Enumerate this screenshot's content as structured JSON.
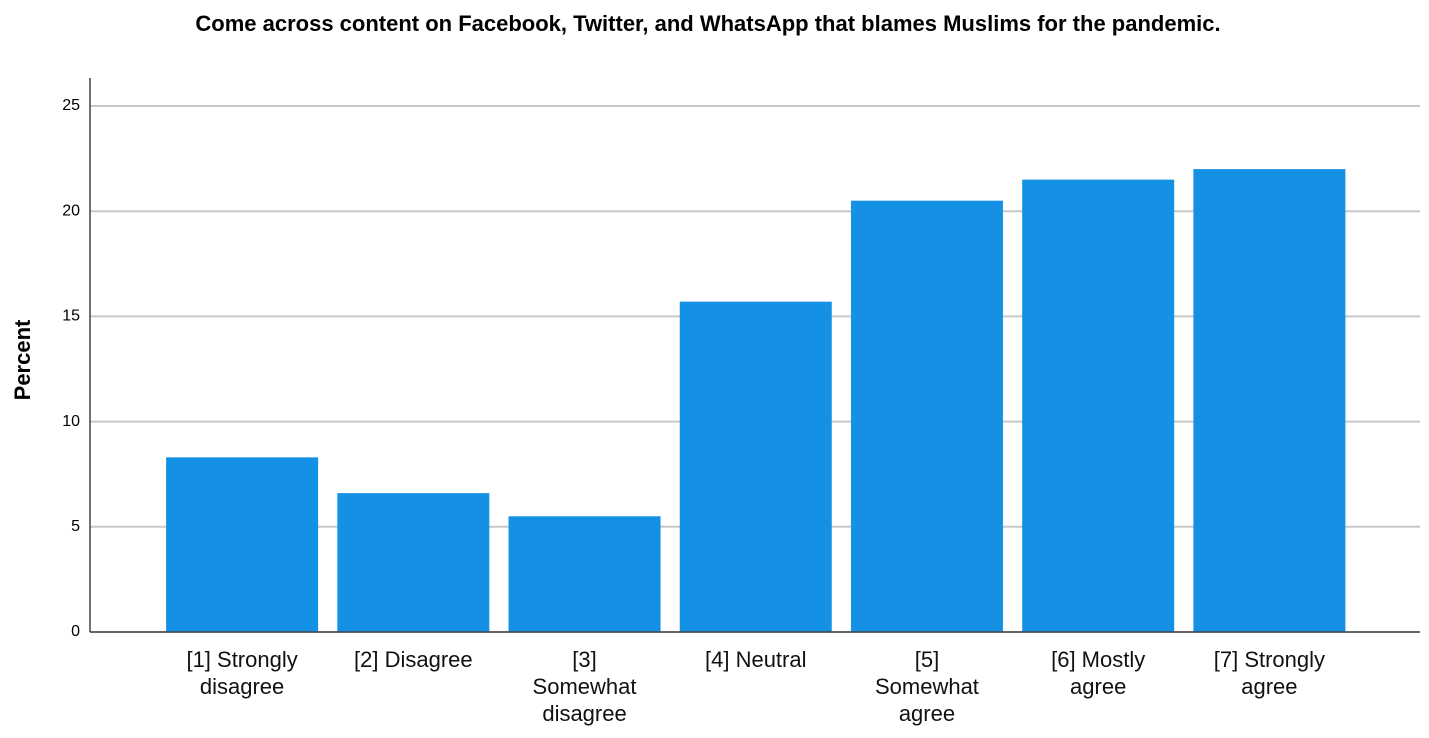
{
  "chart_data": {
    "type": "bar",
    "title": "Come across content on Facebook, Twitter, and WhatsApp that blames Muslims for the pandemic.",
    "y_label": "Percent",
    "categories": [
      "[1] Strongly\ndisagree",
      "[2] Disagree",
      "[3]\nSomewhat\ndisagree",
      "[4] Neutral",
      "[5]\nSomewhat\nagree",
      "[6] Mostly\nagree",
      "[7] Strongly\nagree"
    ],
    "values": [
      8.3,
      6.6,
      5.5,
      15.7,
      20.5,
      21.5,
      22.0
    ],
    "color": "#1490e4",
    "ylim": [
      0,
      25
    ],
    "yticks": [
      0,
      5,
      10,
      15,
      20,
      25
    ],
    "grid": true
  }
}
